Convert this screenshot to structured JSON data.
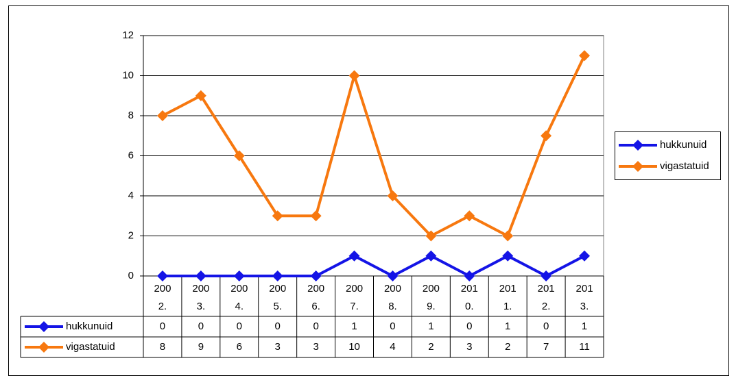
{
  "chart_data": {
    "type": "line",
    "categories": [
      "2002.",
      "2003.",
      "2004.",
      "2005.",
      "2006.",
      "2007.",
      "2008.",
      "2009.",
      "2010.",
      "2011.",
      "2012.",
      "2013."
    ],
    "series": [
      {
        "name": "hukkunuid",
        "color": "#1414e6",
        "values": [
          0,
          0,
          0,
          0,
          0,
          1,
          0,
          1,
          0,
          1,
          0,
          1
        ]
      },
      {
        "name": "vigastatuid",
        "color": "#f7780f",
        "values": [
          8,
          9,
          6,
          3,
          3,
          10,
          4,
          2,
          3,
          2,
          7,
          11
        ]
      }
    ],
    "ylim": [
      0,
      12
    ],
    "yticks": [
      0,
      2,
      4,
      6,
      8,
      10,
      12
    ],
    "grid": true,
    "legend": "right",
    "data_table": true
  }
}
